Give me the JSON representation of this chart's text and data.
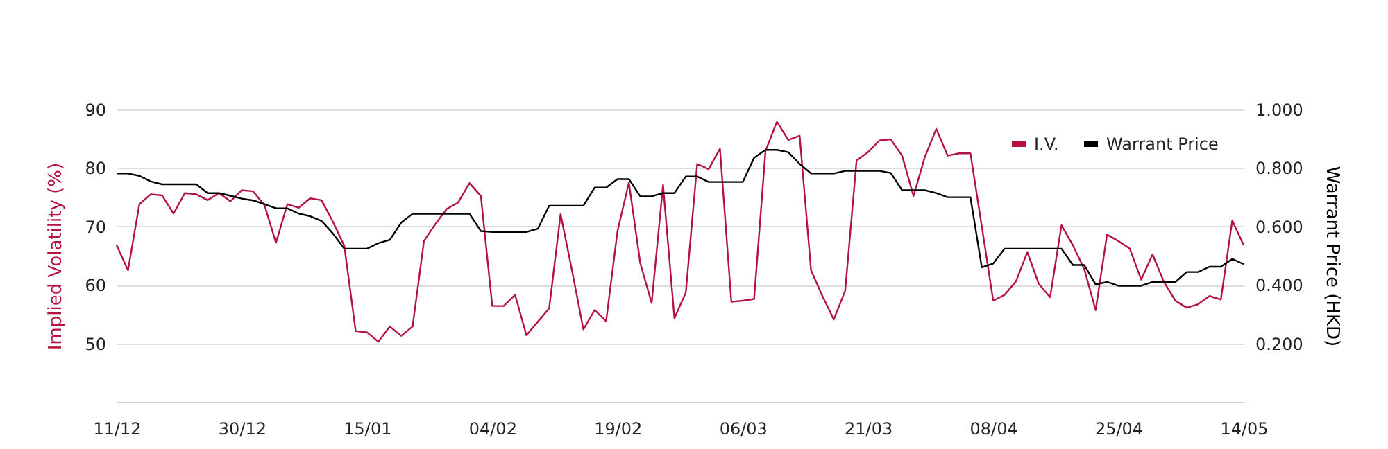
{
  "chart_data": {
    "type": "line",
    "categories": [
      "11/12",
      null,
      null,
      null,
      null,
      null,
      null,
      null,
      null,
      null,
      null,
      "30/12",
      null,
      null,
      null,
      null,
      null,
      null,
      null,
      null,
      null,
      null,
      "15/01",
      null,
      null,
      null,
      null,
      null,
      null,
      null,
      null,
      null,
      null,
      "04/02",
      null,
      null,
      null,
      null,
      null,
      null,
      null,
      null,
      null,
      null,
      "19/02",
      null,
      null,
      null,
      null,
      null,
      null,
      null,
      null,
      null,
      null,
      "06/03",
      null,
      null,
      null,
      null,
      null,
      null,
      null,
      null,
      null,
      null,
      "21/03",
      null,
      null,
      null,
      null,
      null,
      null,
      null,
      null,
      null,
      null,
      "08/04",
      null,
      null,
      null,
      null,
      null,
      null,
      null,
      null,
      null,
      null,
      "25/04",
      null,
      null,
      null,
      null,
      null,
      null,
      null,
      null,
      null,
      null,
      "14/05"
    ],
    "series": [
      {
        "name": "I.V.",
        "color": "#b5123f",
        "values": [
          66.8,
          62.5,
          73.8,
          75.5,
          75.3,
          72.2,
          75.7,
          75.5,
          74.5,
          75.7,
          74.3,
          76.2,
          76.0,
          73.6,
          67.2,
          73.8,
          73.2,
          74.8,
          74.5,
          70.8,
          66.7,
          52.1,
          51.9,
          50.3,
          52.9,
          51.3,
          52.9,
          67.5,
          70.4,
          73.0,
          74.1,
          77.4,
          75.2,
          56.4,
          56.4,
          58.3,
          51.4,
          53.7,
          56.0,
          72.1,
          62.5,
          52.4,
          55.7,
          53.8,
          69.2,
          77.5,
          63.7,
          56.9,
          77.1,
          54.3,
          58.7,
          80.7,
          79.8,
          83.3,
          57.1,
          57.3,
          57.6,
          82.9,
          87.9,
          84.8,
          85.5,
          62.5,
          58.1,
          54.1,
          59.0,
          81.3,
          82.7,
          84.7,
          84.9,
          82.1,
          75.2,
          81.9,
          86.7,
          82.1,
          82.5,
          82.5,
          70.0,
          57.3,
          58.3,
          60.6,
          65.6,
          60.2,
          57.9,
          70.2,
          66.8,
          62.7,
          55.7,
          68.6,
          67.5,
          66.2,
          60.9,
          65.2,
          60.5,
          57.3,
          56.1,
          56.7,
          58.1,
          57.5,
          71.0,
          66.8
        ]
      },
      {
        "name": "Warrant Price",
        "color": "#000000",
        "axis": "y2",
        "values": [
          0.781,
          0.781,
          0.773,
          0.754,
          0.744,
          0.744,
          0.744,
          0.744,
          0.714,
          0.714,
          0.705,
          0.695,
          0.689,
          0.676,
          0.662,
          0.662,
          0.644,
          0.635,
          0.619,
          0.576,
          0.524,
          0.524,
          0.524,
          0.543,
          0.554,
          0.613,
          0.643,
          0.643,
          0.643,
          0.643,
          0.643,
          0.643,
          0.584,
          0.581,
          0.581,
          0.581,
          0.581,
          0.592,
          0.671,
          0.671,
          0.671,
          0.671,
          0.733,
          0.733,
          0.762,
          0.762,
          0.703,
          0.703,
          0.714,
          0.714,
          0.771,
          0.771,
          0.752,
          0.752,
          0.752,
          0.752,
          0.835,
          0.862,
          0.862,
          0.854,
          0.814,
          0.781,
          0.781,
          0.781,
          0.79,
          0.79,
          0.79,
          0.79,
          0.783,
          0.724,
          0.724,
          0.724,
          0.714,
          0.7,
          0.7,
          0.7,
          0.46,
          0.473,
          0.524,
          0.524,
          0.524,
          0.524,
          0.524,
          0.524,
          0.468,
          0.468,
          0.402,
          0.41,
          0.397,
          0.397,
          0.397,
          0.41,
          0.41,
          0.41,
          0.444,
          0.444,
          0.462,
          0.462,
          0.489,
          0.471
        ]
      }
    ],
    "ylabel": "Implied Volatility (%)",
    "y2label": "Warrant Price (HKD)",
    "ylim": [
      40,
      90
    ],
    "yticks": [
      50,
      60,
      70,
      80,
      90
    ],
    "y2lim": [
      0,
      1.0
    ],
    "y2ticks": [
      {
        "value": 0.2,
        "label": "0.200"
      },
      {
        "value": 0.4,
        "label": "0.400"
      },
      {
        "value": 0.6,
        "label": "0.600"
      },
      {
        "value": 0.8,
        "label": "0.800"
      },
      {
        "value": 1.0,
        "label": "1.000"
      }
    ],
    "grid": "y",
    "legend": "top right",
    "marker": "none",
    "line_style": "solid"
  }
}
